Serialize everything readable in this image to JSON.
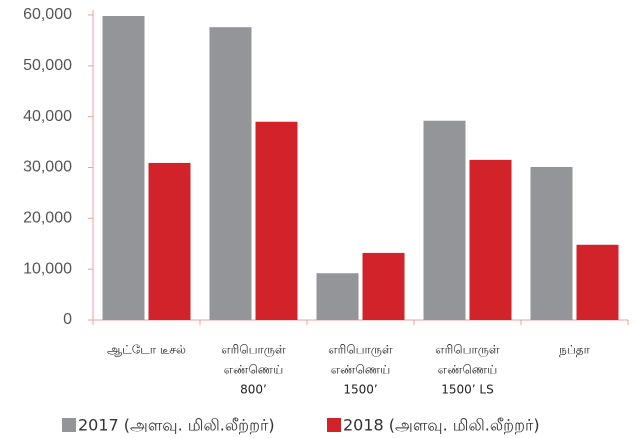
{
  "chart_data": {
    "type": "bar",
    "categories": [
      [
        "ஆட்டோ டீசல்"
      ],
      [
        "எரிபொருள்",
        "எண்ணெய்",
        "800’"
      ],
      [
        "எரிபொருள்",
        "எண்ணெய்",
        "1500’"
      ],
      [
        "எரிபொருள்",
        "எண்ணெய்",
        "1500’ LS"
      ],
      [
        "நப்தா"
      ]
    ],
    "series": [
      {
        "name": "2017 (அளவு. மிலி.லீற்றர்)",
        "color": "#939598",
        "values": [
          59800,
          57600,
          9200,
          39200,
          30100
        ]
      },
      {
        "name": "2018 (அளவு. மிலி.லீற்றர்)",
        "color": "#d2232a",
        "values": [
          30900,
          39000,
          13200,
          31500,
          14800
        ]
      }
    ],
    "ylim": [
      0,
      60000
    ],
    "yticks": [
      0,
      {
        "value": 10000,
        "label": "10,000"
      },
      {
        "value": 20000,
        "label": "20,000"
      },
      {
        "value": 30000,
        "label": "30,000"
      },
      {
        "value": 40000,
        "label": "40,000"
      },
      {
        "value": 50000,
        "label": "50,000"
      },
      {
        "value": 60000,
        "label": "60,000"
      }
    ],
    "grid": false,
    "legend": "bottom"
  }
}
